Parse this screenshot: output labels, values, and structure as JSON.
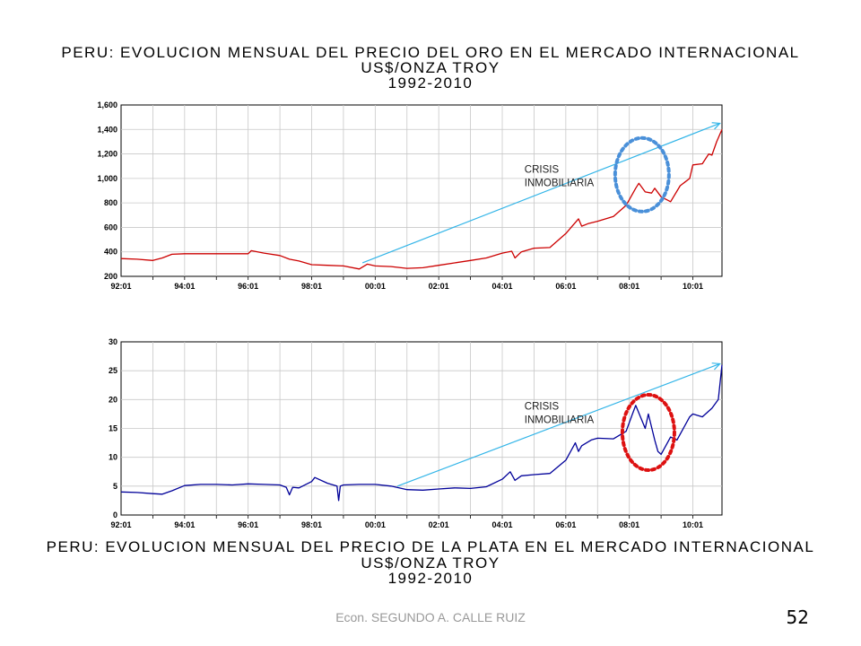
{
  "slide": {
    "author": "Econ. SEGUNDO A. CALLE RUIZ",
    "page_number": "52"
  },
  "colors": {
    "gold_line": "#cc0000",
    "silver_line": "#000099",
    "trend_arrow": "#33b5e8",
    "gold_circle": "#4a90d9",
    "silver_circle": "#dd1111",
    "grid": "#c8c8c8"
  },
  "chart_data": [
    {
      "type": "line",
      "title": "PERU: EVOLUCION MENSUAL DEL PRECIO DEL ORO EN EL MERCADO INTERNACIONAL",
      "subtitle": "US$/ONZA TROY",
      "period": "1992-2010",
      "xlabel": "",
      "ylabel": "",
      "x_ticks": [
        "92:01",
        "94:01",
        "96:01",
        "98:01",
        "00:01",
        "02:01",
        "04:01",
        "06:01",
        "08:01",
        "10:01"
      ],
      "y_ticks": [
        "200",
        "400",
        "600",
        "800",
        "1,000",
        "1,200",
        "1,400",
        "1,600"
      ],
      "xlim": [
        1992.0,
        2010.917
      ],
      "ylim": [
        200,
        1600
      ],
      "grid": true,
      "series": [
        {
          "x": [
            1992.0,
            1992.5,
            1993.0,
            1993.3,
            1993.6,
            1994.0,
            1994.5,
            1995.0,
            1995.5,
            1996.0,
            1996.1,
            1996.5,
            1997.0,
            1997.3,
            1997.6,
            1998.0,
            1998.5,
            1999.0,
            1999.5,
            1999.75,
            2000.0,
            2000.5,
            2001.0,
            2001.5,
            2002.0,
            2002.5,
            2003.0,
            2003.5,
            2004.0,
            2004.3,
            2004.4,
            2004.6,
            2005.0,
            2005.5,
            2006.0,
            2006.4,
            2006.5,
            2006.7,
            2007.0,
            2007.5,
            2007.9,
            2008.2,
            2008.3,
            2008.5,
            2008.7,
            2008.8,
            2009.0,
            2009.3,
            2009.6,
            2009.9,
            2010.0,
            2010.3,
            2010.5,
            2010.6,
            2010.75,
            2010.917
          ],
          "values": [
            345,
            340,
            330,
            350,
            380,
            385,
            385,
            385,
            385,
            385,
            410,
            390,
            370,
            340,
            325,
            295,
            290,
            285,
            260,
            300,
            285,
            280,
            265,
            270,
            290,
            310,
            330,
            350,
            390,
            405,
            350,
            400,
            430,
            435,
            550,
            670,
            610,
            630,
            650,
            690,
            780,
            920,
            960,
            890,
            880,
            920,
            850,
            810,
            940,
            1000,
            1110,
            1120,
            1200,
            1190,
            1300,
            1400
          ]
        }
      ],
      "annotation": [
        "CRISIS",
        "INMOBILIARIA"
      ]
    },
    {
      "type": "line",
      "title": "PERU: EVOLUCION MENSUAL DEL PRECIO DE LA PLATA EN EL MERCADO INTERNACIONAL",
      "subtitle": "US$/ONZA TROY",
      "period": "1992-2010",
      "xlabel": "",
      "ylabel": "",
      "x_ticks": [
        "92:01",
        "94:01",
        "96:01",
        "98:01",
        "00:01",
        "02:01",
        "04:01",
        "06:01",
        "08:01",
        "10:01"
      ],
      "y_ticks": [
        "0",
        "5",
        "10",
        "15",
        "20",
        "25",
        "30"
      ],
      "xlim": [
        1992.0,
        2010.917
      ],
      "ylim": [
        0,
        30
      ],
      "grid": true,
      "series": [
        {
          "x": [
            1992.0,
            1992.5,
            1993.0,
            1993.3,
            1993.6,
            1994.0,
            1994.5,
            1995.0,
            1995.5,
            1996.0,
            1996.5,
            1997.0,
            1997.2,
            1997.3,
            1997.4,
            1997.6,
            1998.0,
            1998.1,
            1998.5,
            1998.8,
            1998.85,
            1998.9,
            1999.0,
            1999.5,
            2000.0,
            2000.5,
            2001.0,
            2001.5,
            2002.0,
            2002.5,
            2003.0,
            2003.5,
            2004.0,
            2004.25,
            2004.4,
            2004.6,
            2005.0,
            2005.5,
            2006.0,
            2006.3,
            2006.4,
            2006.5,
            2006.8,
            2007.0,
            2007.5,
            2007.9,
            2008.1,
            2008.2,
            2008.5,
            2008.6,
            2008.8,
            2008.9,
            2009.0,
            2009.3,
            2009.5,
            2009.9,
            2010.0,
            2010.3,
            2010.6,
            2010.8,
            2010.917
          ],
          "values": [
            4.0,
            3.9,
            3.7,
            3.6,
            4.2,
            5.1,
            5.3,
            5.3,
            5.2,
            5.4,
            5.3,
            5.2,
            4.8,
            3.5,
            4.8,
            4.7,
            5.8,
            6.5,
            5.5,
            5.0,
            2.5,
            5.0,
            5.2,
            5.3,
            5.3,
            5.0,
            4.4,
            4.3,
            4.5,
            4.7,
            4.6,
            4.9,
            6.2,
            7.5,
            6.0,
            6.8,
            7.0,
            7.2,
            9.5,
            12.5,
            11.0,
            12.0,
            13.0,
            13.3,
            13.2,
            14.5,
            17.5,
            19.0,
            15.0,
            17.5,
            13.0,
            11.0,
            10.5,
            13.5,
            13.0,
            17.0,
            17.5,
            17.0,
            18.5,
            20.0,
            26.0
          ]
        }
      ],
      "annotation": [
        "CRISIS",
        "INMOBILIARIA"
      ]
    }
  ]
}
